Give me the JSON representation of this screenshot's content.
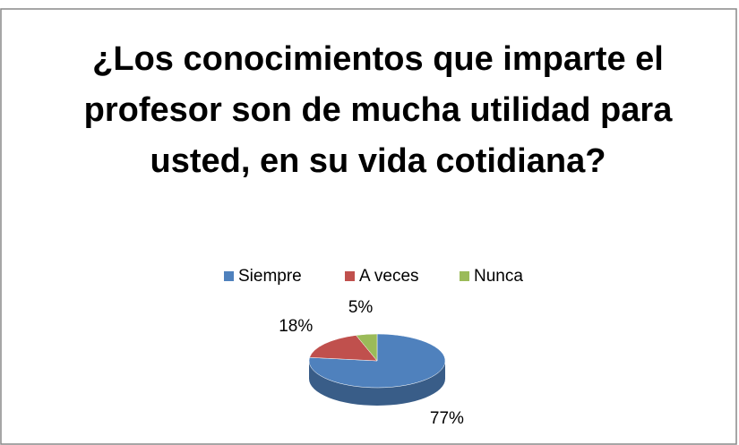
{
  "chart_data": {
    "type": "pie",
    "title": "¿Los conocimientos que imparte el profesor son de mucha utilidad para usted, en su vida cotidiana?",
    "categories": [
      "Siempre",
      "A veces",
      "Nunca"
    ],
    "values": [
      77,
      18,
      5
    ],
    "value_labels": [
      "77%",
      "18%",
      "5%"
    ],
    "colors": [
      "#4f81bd",
      "#c0504d",
      "#9bbb59"
    ],
    "legend": "top"
  }
}
